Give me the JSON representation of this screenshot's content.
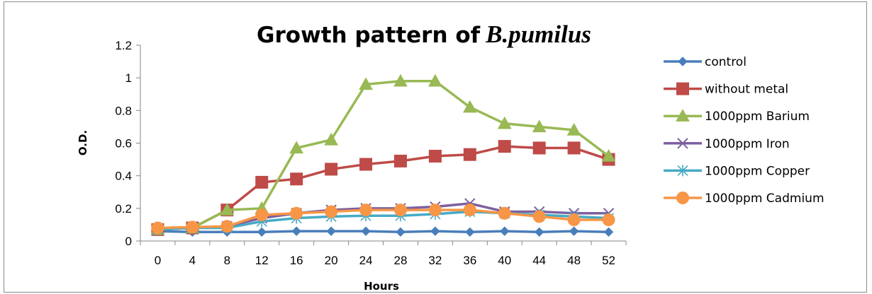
{
  "chart_data": {
    "type": "line",
    "title": "Growth pattern of",
    "title_italic": "B.pumilus",
    "xlabel": "Hours",
    "ylabel": "O.D.",
    "x": [
      0,
      4,
      8,
      12,
      16,
      20,
      24,
      28,
      32,
      36,
      40,
      44,
      48,
      52
    ],
    "x_tick_labels": [
      "0",
      "4",
      "8",
      "12",
      "16",
      "20",
      "24",
      "28",
      "32",
      "36",
      "40",
      "44",
      "48",
      "52"
    ],
    "ylim": [
      0,
      1.2
    ],
    "y_tick_labels": [
      "0",
      "0.2",
      "0.4",
      "0.6",
      "0.8",
      "1",
      "1.2"
    ],
    "grid": false,
    "legend_position": "right",
    "series": [
      {
        "name": "control",
        "color": "#4a7ebb",
        "marker": "diamond",
        "values": [
          0.06,
          0.055,
          0.055,
          0.055,
          0.06,
          0.06,
          0.06,
          0.055,
          0.06,
          0.055,
          0.06,
          0.055,
          0.06,
          0.055
        ]
      },
      {
        "name": "without metal",
        "color": "#be4b48",
        "marker": "square",
        "values": [
          0.07,
          0.08,
          0.19,
          0.36,
          0.38,
          0.44,
          0.47,
          0.49,
          0.52,
          0.53,
          0.58,
          0.57,
          0.57,
          0.5
        ]
      },
      {
        "name": "1000ppm Barium",
        "color": "#98b954",
        "marker": "triangle",
        "values": [
          0.07,
          0.08,
          0.19,
          0.2,
          0.57,
          0.62,
          0.96,
          0.98,
          0.98,
          0.82,
          0.72,
          0.7,
          0.68,
          0.52
        ]
      },
      {
        "name": "1000ppm Iron",
        "color": "#7d60a0",
        "marker": "x",
        "values": [
          0.07,
          0.08,
          0.09,
          0.14,
          0.17,
          0.19,
          0.2,
          0.2,
          0.21,
          0.23,
          0.18,
          0.18,
          0.17,
          0.17
        ]
      },
      {
        "name": "1000ppm Copper",
        "color": "#46aac5",
        "marker": "star",
        "values": [
          0.07,
          0.08,
          0.08,
          0.12,
          0.14,
          0.15,
          0.155,
          0.155,
          0.165,
          0.18,
          0.17,
          0.16,
          0.15,
          0.14
        ]
      },
      {
        "name": "1000ppm Cadmium",
        "color": "#f79646",
        "marker": "circle",
        "values": [
          0.08,
          0.085,
          0.09,
          0.16,
          0.17,
          0.18,
          0.19,
          0.19,
          0.19,
          0.19,
          0.17,
          0.15,
          0.13,
          0.13
        ]
      }
    ]
  }
}
